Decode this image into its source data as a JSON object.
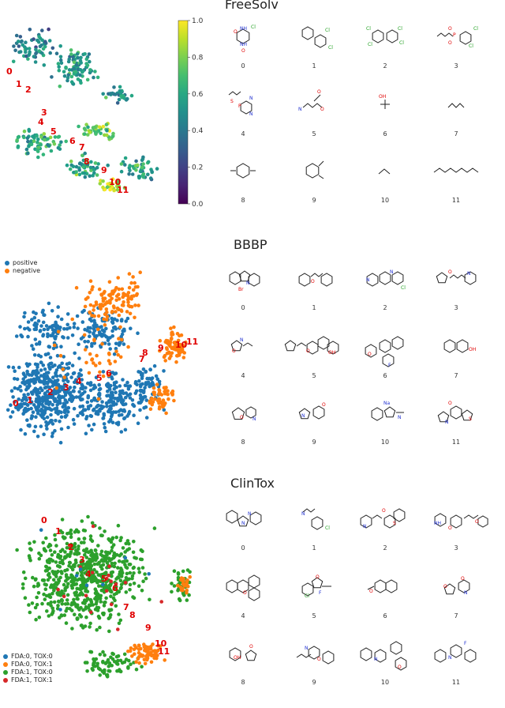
{
  "chart_data": [
    {
      "type": "scatter",
      "title": "FreeSolv",
      "colorbar": {
        "min": 0.0,
        "max": 1.0,
        "ticks": [
          "0.0",
          "0.2",
          "0.4",
          "0.6",
          "0.8",
          "1.0"
        ],
        "colormap": "viridis"
      },
      "annotations": [
        "0",
        "1",
        "2",
        "3",
        "4",
        "5",
        "6",
        "7",
        "8",
        "9",
        "10",
        "11"
      ],
      "molecule_labels": [
        "0",
        "1",
        "2",
        "3",
        "4",
        "5",
        "6",
        "7",
        "8",
        "9",
        "10",
        "11"
      ],
      "atom_labels": {
        "cl": "Cl",
        "nh": "NH",
        "o": "O",
        "p": "P",
        "s": "S",
        "n": "N",
        "oh": "OH"
      }
    },
    {
      "type": "scatter",
      "title": "BBBP",
      "legend": [
        {
          "name": "positive",
          "color": "#1f77b4"
        },
        {
          "name": "negative",
          "color": "#ff7f0e"
        }
      ],
      "legend_position": "top-left",
      "annotations": [
        "0",
        "1",
        "2",
        "3",
        "4",
        "5",
        "6",
        "7",
        "8",
        "9",
        "10",
        "11"
      ],
      "molecule_labels": [
        "0",
        "1",
        "2",
        "3",
        "4",
        "5",
        "6",
        "7",
        "8",
        "9",
        "10",
        "11"
      ]
    },
    {
      "type": "scatter",
      "title": "ClinTox",
      "legend": [
        {
          "name": "FDA:0, TOX:0",
          "color": "#1f77b4"
        },
        {
          "name": "FDA:0, TOX:1",
          "color": "#ff7f0e"
        },
        {
          "name": "FDA:1, TOX:0",
          "color": "#2ca02c"
        },
        {
          "name": "FDA:1, TOX:1",
          "color": "#d62728"
        }
      ],
      "legend_position": "bottom-left",
      "annotations": [
        "0",
        "1",
        "2",
        "3",
        "4",
        "5",
        "6",
        "7",
        "8",
        "9",
        "10",
        "11"
      ],
      "molecule_labels": [
        "0",
        "1",
        "2",
        "3",
        "4",
        "5",
        "6",
        "7",
        "8",
        "9",
        "10",
        "11"
      ]
    }
  ]
}
